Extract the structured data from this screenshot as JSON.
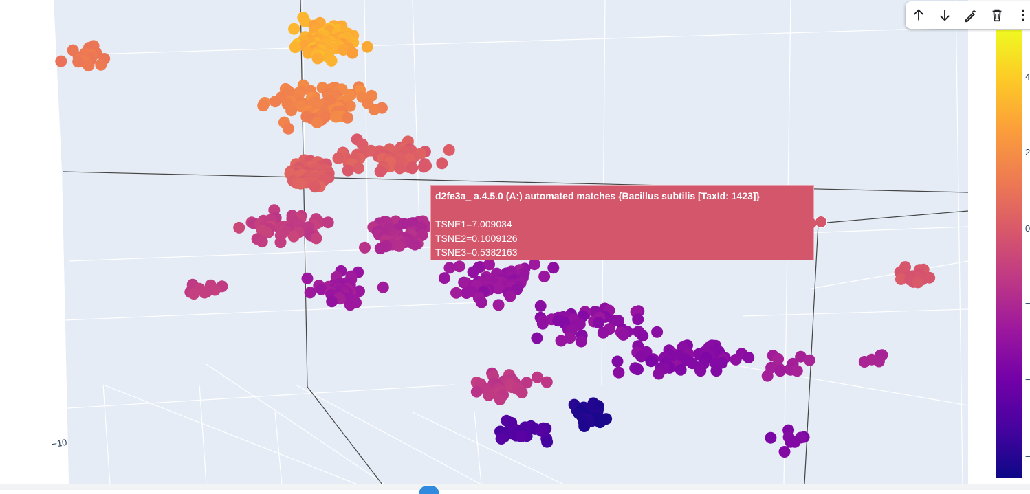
{
  "chart_data": {
    "type": "scatter",
    "dimensions": 3,
    "axes": {
      "x": {
        "title": "",
        "visible_tick_labels": [
          "−10"
        ]
      },
      "y": {
        "title": "",
        "visible_tick_labels": []
      },
      "z": {
        "title": "",
        "visible_tick_labels": []
      }
    },
    "background": "#e5ecf6",
    "grid": true,
    "colorscale": "plasma",
    "colorbar": {
      "ticks": [
        "4",
        "2",
        "0",
        "−",
        "−",
        "−"
      ],
      "range_min_color": "#0d0887",
      "range_max_color": "#f0f921"
    },
    "hovered_point": {
      "label": "d2fe3a_ a.4.5.0 (A:) automated matches {Bacillus subtilis [TaxId: 1423]}",
      "lines": [
        "TSNE1=7.009034",
        "TSNE2=0.1009126",
        "TSNE3=0.5382163"
      ],
      "TSNE1": 7.009034,
      "TSNE2": 0.1009126,
      "TSNE3": 0.5382163,
      "color": "#d4566b"
    },
    "series": [
      {
        "marker_shape": "circle",
        "marker_color_by": "colorbar value",
        "point_count_estimate": 900
      }
    ]
  },
  "toolbar": {
    "buttons": [
      {
        "name": "move-up",
        "icon": "arrow-up-icon"
      },
      {
        "name": "move-down",
        "icon": "arrow-down-icon"
      },
      {
        "name": "edit",
        "icon": "magic-pen-icon"
      },
      {
        "name": "delete",
        "icon": "trash-icon"
      },
      {
        "name": "more",
        "icon": "more-vertical-icon"
      }
    ]
  }
}
